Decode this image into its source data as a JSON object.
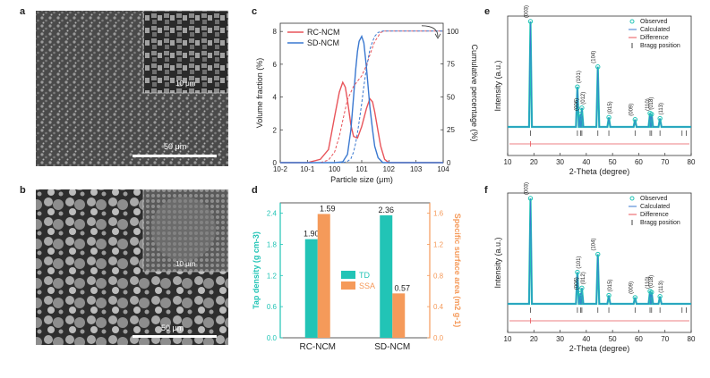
{
  "colors": {
    "teal": "#22c4b6",
    "orange": "#f59a5a",
    "red": "#e8545a",
    "blue": "#3a78d0",
    "sem_dark": "#3f3f3f"
  },
  "panel_labels": {
    "a": "a",
    "b": "b",
    "c": "c",
    "d": "d",
    "e": "e",
    "f": "f"
  },
  "sem": {
    "a": {
      "inset_scale": "10 μm",
      "scale": "50 μm"
    },
    "b": {
      "inset_scale": "10 μm",
      "scale": "50 μm"
    }
  },
  "chart_data": [
    {
      "panel": "c",
      "type": "line",
      "xlabel": "Particle size (μm)",
      "ylabel": "Volume fraction (%)",
      "y2label": "Cumulative percentage (%)",
      "xscale": "log",
      "xlim": [
        0.01,
        10000
      ],
      "xticks": [
        "10-2",
        "10-1",
        "100",
        "101",
        "102",
        "103",
        "104"
      ],
      "ylim": [
        0,
        8.5
      ],
      "yticks": [
        "0",
        "2",
        "4",
        "6",
        "8"
      ],
      "y2lim": [
        0,
        106
      ],
      "y2ticks": [
        "0",
        "25",
        "50",
        "75",
        "100"
      ],
      "legend": [
        "RC-NCM",
        "SD-NCM"
      ],
      "legend_position": "top-left",
      "series": [
        {
          "name": "RC-NCM",
          "kind": "fraction",
          "color": "#e8545a",
          "x": [
            0.01,
            0.1,
            0.3,
            0.6,
            1,
            1.5,
            2,
            2.5,
            3,
            4,
            5,
            7,
            10,
            15,
            20,
            25,
            30,
            40,
            50,
            70,
            100,
            1000,
            10000
          ],
          "y": [
            0,
            0,
            0.2,
            0.8,
            2.8,
            4.3,
            4.9,
            4.6,
            3.8,
            2.3,
            1.6,
            1.5,
            2.2,
            3.3,
            3.9,
            3.7,
            3.1,
            1.9,
            1.0,
            0.2,
            0,
            0,
            0
          ]
        },
        {
          "name": "SD-NCM",
          "kind": "fraction",
          "color": "#3a78d0",
          "x": [
            0.01,
            1,
            2,
            3,
            4,
            5,
            6,
            7,
            8,
            10,
            12,
            15,
            20,
            25,
            30,
            40,
            60,
            1000,
            10000
          ],
          "y": [
            0,
            0,
            0.05,
            0.5,
            2.0,
            4.0,
            5.7,
            6.8,
            7.4,
            7.7,
            7.3,
            5.8,
            3.4,
            2.0,
            1.0,
            0.3,
            0,
            0,
            0
          ]
        },
        {
          "name": "RC-NCM",
          "kind": "cumulative",
          "color": "#e8545a",
          "x": [
            0.01,
            0.3,
            0.6,
            1,
            1.5,
            2,
            3,
            5,
            7,
            10,
            15,
            20,
            30,
            50,
            70,
            100,
            1000,
            10000
          ],
          "y": [
            0,
            0,
            2,
            8,
            20,
            32,
            48,
            58,
            62,
            66,
            74,
            82,
            92,
            99,
            100,
            100,
            100,
            100
          ]
        },
        {
          "name": "SD-NCM",
          "kind": "cumulative",
          "color": "#3a78d0",
          "x": [
            0.01,
            2,
            3,
            4,
            5,
            6,
            7,
            8,
            10,
            12,
            15,
            20,
            25,
            30,
            40,
            60,
            1000,
            10000
          ],
          "y": [
            0,
            0,
            1,
            3,
            8,
            15,
            23,
            31,
            45,
            58,
            72,
            86,
            92,
            96,
            99,
            100,
            100,
            100
          ]
        }
      ]
    },
    {
      "panel": "d",
      "type": "bar",
      "categories": [
        "RC-NCM",
        "SD-NCM"
      ],
      "ylabel": "Tap density (g cm-3)",
      "y2label": "Specific surface area (m2 g-1)",
      "ylim": [
        0,
        2.6
      ],
      "yticks": [
        "0.0",
        "0.6",
        "1.2",
        "1.8",
        "2.4"
      ],
      "y2lim": [
        0,
        1.733
      ],
      "y2ticks": [
        "0.0",
        "0.4",
        "0.8",
        "1.2",
        "1.6"
      ],
      "series": [
        {
          "name": "TD",
          "axis": "left",
          "color": "#22c4b6",
          "values": [
            1.9,
            2.36
          ],
          "labels": [
            "1.90",
            "2.36"
          ]
        },
        {
          "name": "SSA",
          "axis": "right",
          "color": "#f59a5a",
          "values": [
            1.59,
            0.57
          ],
          "labels": [
            "1.59",
            "0.57"
          ]
        }
      ]
    },
    {
      "panel": "e",
      "type": "line",
      "xlabel": "2-Theta (degree)",
      "ylabel": "Intensity (a.u.)",
      "xlim": [
        10,
        80
      ],
      "xticks": [
        "10",
        "20",
        "30",
        "40",
        "50",
        "60",
        "70",
        "80"
      ],
      "legend": [
        "Observed",
        "Calculated",
        "Difference",
        "Bragg position"
      ],
      "legend_position": "top-right",
      "peaks": [
        {
          "hkl": "(003)",
          "x": 18.7,
          "h": 1.0
        },
        {
          "hkl": "(101)",
          "x": 36.6,
          "h": 0.38
        },
        {
          "hkl": "(006)",
          "x": 37.8,
          "h": 0.12
        },
        {
          "hkl": "(012)",
          "x": 38.3,
          "h": 0.18
        },
        {
          "hkl": "(104)",
          "x": 44.4,
          "h": 0.57
        },
        {
          "hkl": "(015)",
          "x": 48.6,
          "h": 0.09
        },
        {
          "hkl": "(009)",
          "x": 58.6,
          "h": 0.07
        },
        {
          "hkl": "(018)",
          "x": 64.3,
          "h": 0.13
        },
        {
          "hkl": "(110)",
          "x": 64.9,
          "h": 0.12
        },
        {
          "hkl": "(113)",
          "x": 68.1,
          "h": 0.08
        }
      ],
      "bragg_positions": [
        18.7,
        36.6,
        37.8,
        38.3,
        44.4,
        48.6,
        58.6,
        64.3,
        64.9,
        68.1,
        76.5,
        78.1
      ]
    },
    {
      "panel": "f",
      "type": "line",
      "xlabel": "2-Theta (degree)",
      "ylabel": "Intensity (a.u.)",
      "xlim": [
        10,
        80
      ],
      "xticks": [
        "10",
        "20",
        "30",
        "40",
        "50",
        "60",
        "70",
        "80"
      ],
      "legend": [
        "Observed",
        "Calculated",
        "Difference",
        "Bragg position"
      ],
      "legend_position": "top-right",
      "peaks": [
        {
          "hkl": "(003)",
          "x": 18.7,
          "h": 1.0
        },
        {
          "hkl": "(101)",
          "x": 36.6,
          "h": 0.3
        },
        {
          "hkl": "(006)",
          "x": 37.8,
          "h": 0.1
        },
        {
          "hkl": "(012)",
          "x": 38.3,
          "h": 0.15
        },
        {
          "hkl": "(104)",
          "x": 44.4,
          "h": 0.47
        },
        {
          "hkl": "(015)",
          "x": 48.6,
          "h": 0.08
        },
        {
          "hkl": "(009)",
          "x": 58.6,
          "h": 0.06
        },
        {
          "hkl": "(018)",
          "x": 64.3,
          "h": 0.12
        },
        {
          "hkl": "(110)",
          "x": 64.9,
          "h": 0.11
        },
        {
          "hkl": "(113)",
          "x": 68.1,
          "h": 0.07
        }
      ],
      "bragg_positions": [
        18.7,
        36.6,
        37.8,
        38.3,
        44.4,
        48.6,
        58.6,
        64.3,
        64.9,
        68.1,
        76.5,
        78.1
      ]
    }
  ]
}
